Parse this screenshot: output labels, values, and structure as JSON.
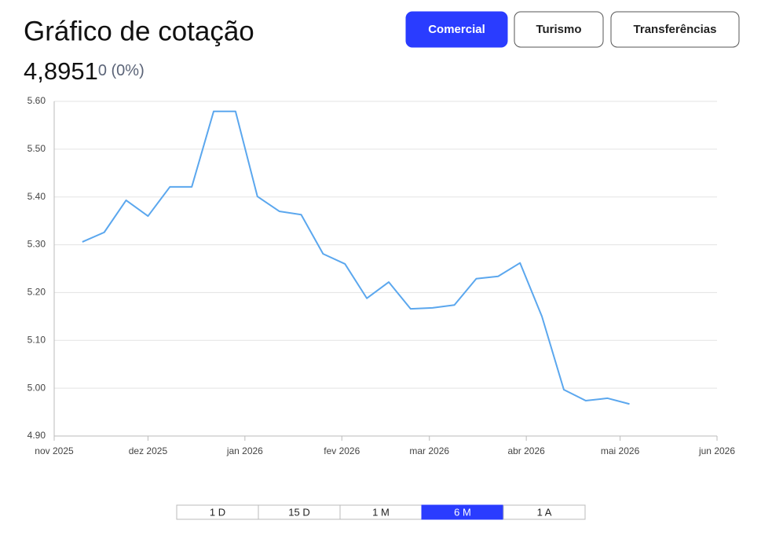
{
  "header": {
    "title": "Gráfico de cotação",
    "price": "4,8951",
    "change": "0 (0%)"
  },
  "tabs": {
    "items": [
      "Comercial",
      "Turismo",
      "Transferências"
    ],
    "active": 0
  },
  "chart_data": {
    "type": "line",
    "x": [
      9,
      16,
      23,
      30,
      37,
      44,
      51,
      58,
      65,
      72,
      79,
      86,
      93,
      100,
      107,
      114,
      121,
      128,
      135,
      142,
      149,
      156,
      163,
      170,
      177,
      184
    ],
    "series": [
      {
        "name": "Comercial",
        "color": "#5ba7ee",
        "values": [
          5.306,
          5.326,
          5.393,
          5.36,
          5.421,
          5.421,
          5.579,
          5.579,
          5.401,
          5.37,
          5.363,
          5.281,
          5.26,
          5.188,
          5.222,
          5.166,
          5.168,
          5.174,
          5.229,
          5.234,
          5.262,
          5.15,
          4.997,
          4.974,
          4.979,
          4.967
        ]
      }
    ],
    "xlim": [
      0,
      212
    ],
    "xticks": [
      {
        "value": 0,
        "label": "nov 2025"
      },
      {
        "value": 30,
        "label": "dez 2025"
      },
      {
        "value": 61,
        "label": "jan 2026"
      },
      {
        "value": 92,
        "label": "fev 2026"
      },
      {
        "value": 120,
        "label": "mar 2026"
      },
      {
        "value": 151,
        "label": "abr 2026"
      },
      {
        "value": 181,
        "label": "mai 2026"
      },
      {
        "value": 212,
        "label": "jun 2026"
      }
    ],
    "ylim": [
      4.9,
      5.6
    ],
    "yticks": [
      {
        "value": 4.9,
        "label": "4.90"
      },
      {
        "value": 5.0,
        "label": "5.00"
      },
      {
        "value": 5.1,
        "label": "5.10"
      },
      {
        "value": 5.2,
        "label": "5.20"
      },
      {
        "value": 5.3,
        "label": "5.30"
      },
      {
        "value": 5.4,
        "label": "5.40"
      },
      {
        "value": 5.5,
        "label": "5.50"
      },
      {
        "value": 5.6,
        "label": "5.60"
      }
    ],
    "grid": true
  },
  "periods": {
    "items": [
      "1 D",
      "15 D",
      "1 M",
      "6 M",
      "1 A"
    ],
    "active": 3
  }
}
